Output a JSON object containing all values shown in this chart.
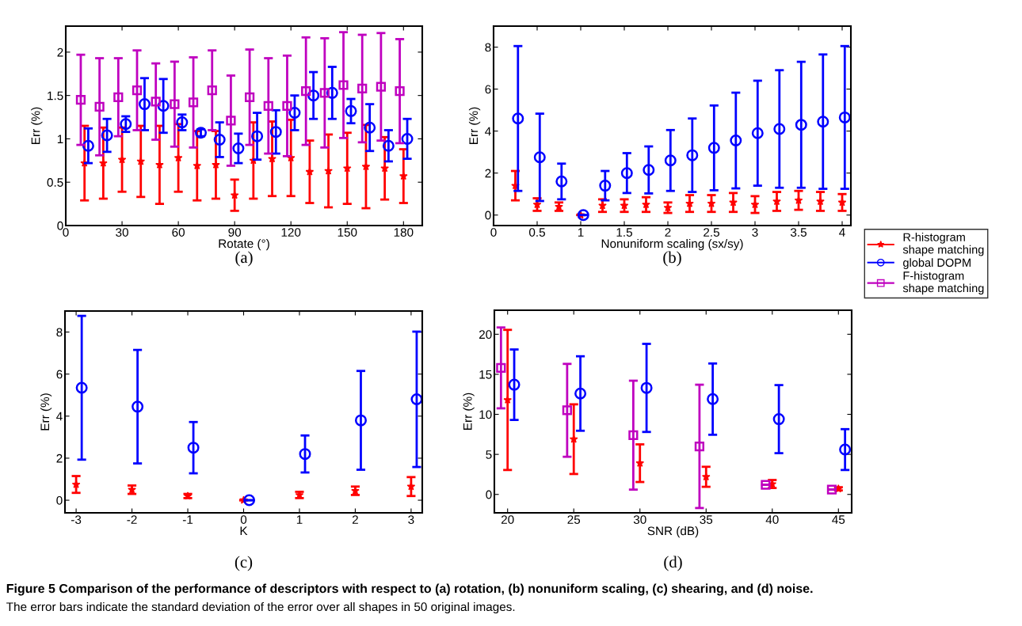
{
  "chart_data": [
    {
      "type": "scatter",
      "xlabel": "Rotate (°)",
      "ylabel": "Err (%)",
      "xlim": [
        0,
        190
      ],
      "xticks": [
        0,
        30,
        60,
        90,
        120,
        150,
        180
      ],
      "ylim": [
        0,
        2.3
      ],
      "yticks": [
        0,
        0.5,
        1,
        1.5,
        2
      ],
      "grid": false,
      "legend": false,
      "annotations": [
        "(a)"
      ],
      "series": [
        {
          "color": "#ff0000",
          "marker": "star",
          "x": [
            10,
            20,
            30,
            40,
            50,
            60,
            70,
            80,
            90,
            100,
            110,
            120,
            130,
            140,
            150,
            160,
            170,
            180
          ],
          "values": [
            0.72,
            0.72,
            0.76,
            0.74,
            0.7,
            0.78,
            0.69,
            0.7,
            0.35,
            0.75,
            0.77,
            0.78,
            0.62,
            0.63,
            0.66,
            0.68,
            0.66,
            0.57
          ],
          "errors": [
            0.43,
            0.41,
            0.37,
            0.41,
            0.45,
            0.39,
            0.4,
            0.39,
            0.18,
            0.44,
            0.43,
            0.44,
            0.36,
            0.42,
            0.41,
            0.48,
            0.36,
            0.31
          ]
        },
        {
          "color": "#0000ff",
          "marker": "circle",
          "x": [
            12,
            22,
            32,
            42,
            52,
            62,
            72,
            82,
            92,
            102,
            112,
            122,
            132,
            142,
            152,
            162,
            172,
            182
          ],
          "values": [
            0.92,
            1.04,
            1.17,
            1.4,
            1.38,
            1.19,
            1.07,
            0.99,
            0.89,
            1.03,
            1.08,
            1.3,
            1.5,
            1.53,
            1.32,
            1.13,
            0.92,
            1.0
          ],
          "errors": [
            0.2,
            0.19,
            0.09,
            0.3,
            0.31,
            0.09,
            0.04,
            0.2,
            0.17,
            0.27,
            0.25,
            0.2,
            0.27,
            0.3,
            0.14,
            0.27,
            0.18,
            0.23
          ]
        },
        {
          "color": "#bf00bf",
          "marker": "square",
          "x": [
            8,
            18,
            28,
            38,
            48,
            58,
            68,
            78,
            88,
            98,
            108,
            118,
            128,
            138,
            148,
            158,
            168,
            178
          ],
          "values": [
            1.45,
            1.37,
            1.48,
            1.56,
            1.43,
            1.4,
            1.42,
            1.56,
            1.21,
            1.48,
            1.38,
            1.38,
            1.55,
            1.53,
            1.62,
            1.58,
            1.6,
            1.55
          ],
          "errors": [
            0.52,
            0.56,
            0.45,
            0.46,
            0.44,
            0.49,
            0.52,
            0.46,
            0.52,
            0.55,
            0.55,
            0.58,
            0.62,
            0.63,
            0.61,
            0.62,
            0.62,
            0.6
          ]
        }
      ]
    },
    {
      "type": "scatter",
      "xlabel": "Nonuniform scaling (sx/sy)",
      "ylabel": "Err (%)",
      "xlim": [
        0,
        4.1
      ],
      "xticks": [
        0,
        0.5,
        1,
        1.5,
        2,
        2.5,
        3,
        3.5,
        4
      ],
      "ylim": [
        -0.5,
        9
      ],
      "yticks": [
        0,
        2,
        4,
        6,
        8
      ],
      "grid": false,
      "legend": false,
      "annotations": [
        "(b)"
      ],
      "series": [
        {
          "color": "#ff0000",
          "marker": "star",
          "x": [
            0.25,
            0.5,
            0.75,
            1,
            1.25,
            1.5,
            1.75,
            2,
            2.25,
            2.5,
            2.75,
            3,
            3.25,
            3.5,
            3.75,
            4
          ],
          "values": [
            1.4,
            0.5,
            0.4,
            0,
            0.45,
            0.45,
            0.5,
            0.35,
            0.55,
            0.55,
            0.6,
            0.5,
            0.65,
            0.7,
            0.65,
            0.6
          ],
          "errors": [
            0.7,
            0.3,
            0.2,
            0,
            0.3,
            0.3,
            0.35,
            0.25,
            0.4,
            0.4,
            0.45,
            0.4,
            0.45,
            0.45,
            0.45,
            0.4
          ]
        },
        {
          "color": "#0000ff",
          "marker": "circle",
          "x": [
            0.28,
            0.53,
            0.78,
            1.03,
            1.28,
            1.53,
            1.78,
            2.03,
            2.28,
            2.53,
            2.78,
            3.03,
            3.28,
            3.53,
            3.78,
            4.03
          ],
          "values": [
            4.6,
            2.75,
            1.6,
            0,
            1.4,
            2.0,
            2.15,
            2.6,
            2.85,
            3.2,
            3.55,
            3.9,
            4.1,
            4.3,
            4.45,
            4.65
          ],
          "errors": [
            3.45,
            2.08,
            0.85,
            0,
            0.7,
            0.95,
            1.12,
            1.45,
            1.75,
            2.02,
            2.28,
            2.5,
            2.8,
            3.0,
            3.2,
            3.4
          ]
        }
      ]
    },
    {
      "type": "scatter",
      "xlabel": "K",
      "ylabel": "Err (%)",
      "xlim": [
        -3.2,
        3.2
      ],
      "xticks": [
        -3,
        -2,
        -1,
        0,
        1,
        2,
        3
      ],
      "ylim": [
        -0.6,
        9
      ],
      "yticks": [
        0,
        2,
        4,
        6,
        8
      ],
      "grid": false,
      "legend": false,
      "annotations": [
        "(c)"
      ],
      "series": [
        {
          "color": "#ff0000",
          "marker": "star",
          "x": [
            -3,
            -2,
            -1,
            0,
            1,
            2,
            3
          ],
          "values": [
            0.75,
            0.5,
            0.2,
            0,
            0.25,
            0.45,
            0.65
          ],
          "errors": [
            0.4,
            0.2,
            0.1,
            0,
            0.15,
            0.2,
            0.45
          ]
        },
        {
          "color": "#0000ff",
          "marker": "circle",
          "x": [
            -2.9,
            -1.9,
            -0.9,
            0.1,
            1.1,
            2.1,
            3.1
          ],
          "values": [
            5.35,
            4.45,
            2.5,
            0,
            2.2,
            3.8,
            4.8
          ],
          "errors": [
            3.42,
            2.7,
            1.22,
            0,
            0.88,
            2.35,
            3.22
          ]
        }
      ]
    },
    {
      "type": "scatter",
      "xlabel": "SNR (dB)",
      "ylabel": "Err (%)",
      "xlim": [
        19,
        46
      ],
      "xticks": [
        20,
        25,
        30,
        35,
        40,
        45
      ],
      "ylim": [
        -2.3,
        23
      ],
      "yticks": [
        0,
        5,
        10,
        15,
        20
      ],
      "grid": false,
      "legend": "right",
      "annotations": [
        "(d)",
        "Figure 5 Comparison of the performance of descriptors with respect to (a) rotation, (b) nonuniform scaling, (c) shearing, and (d) noise.",
        "The error bars indicate the standard deviation of the error over all shapes in 50 original images."
      ],
      "series": [
        {
          "name": "R-histogram\nshape matching",
          "color": "#ff0000",
          "marker": "star",
          "x": [
            20,
            25,
            30,
            35,
            40,
            45
          ],
          "values": [
            11.8,
            6.9,
            3.9,
            2.2,
            1.3,
            0.7
          ],
          "errors": [
            8.75,
            4.35,
            2.35,
            1.25,
            0.5,
            0.2
          ]
        },
        {
          "name": "global DOPM",
          "color": "#0000ff",
          "marker": "circle",
          "x": [
            20.5,
            25.5,
            30.5,
            35.5,
            40.5,
            45.5
          ],
          "values": [
            13.7,
            12.6,
            13.3,
            11.9,
            9.4,
            5.6
          ],
          "errors": [
            4.4,
            4.65,
            5.5,
            4.45,
            4.25,
            2.55
          ]
        },
        {
          "name": "F-histogram\nshape matching",
          "color": "#bf00bf",
          "marker": "square",
          "x": [
            19.5,
            24.5,
            29.5,
            34.5,
            39.5,
            44.5
          ],
          "values": [
            15.8,
            10.5,
            7.4,
            6.0,
            1.2,
            0.6
          ],
          "errors": [
            5.05,
            5.8,
            6.8,
            7.7,
            null,
            null
          ]
        }
      ]
    }
  ]
}
